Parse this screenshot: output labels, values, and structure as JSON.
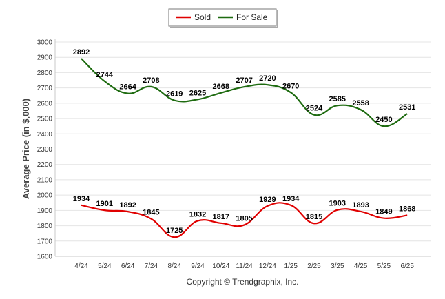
{
  "chart_data": {
    "type": "line",
    "title": "",
    "xlabel": "",
    "ylabel": "Average Price (in $,000)",
    "ylim": [
      1600,
      3000
    ],
    "yticks": [
      "1600",
      "1700",
      "1800",
      "1900",
      "2000",
      "2100",
      "2200",
      "2300",
      "2400",
      "2500",
      "2600",
      "2700",
      "2800",
      "2900",
      "3000"
    ],
    "categories": [
      "4/24",
      "5/24",
      "6/24",
      "7/24",
      "8/24",
      "9/24",
      "10/24",
      "11/24",
      "12/24",
      "1/25",
      "2/25",
      "3/25",
      "4/25",
      "5/25",
      "6/25"
    ],
    "grid": true,
    "legend_position": "top-center",
    "series": [
      {
        "name": "Sold",
        "color": "#e00000",
        "values": [
          1934,
          1901,
          1892,
          1845,
          1725,
          1832,
          1817,
          1805,
          1929,
          1934,
          1815,
          1903,
          1893,
          1849,
          1868
        ]
      },
      {
        "name": "For Sale",
        "color": "#1e6b10",
        "values": [
          2892,
          2744,
          2664,
          2708,
          2619,
          2625,
          2668,
          2707,
          2720,
          2670,
          2524,
          2585,
          2558,
          2450,
          2531
        ]
      }
    ],
    "footer": "Copyright © Trendgraphix, Inc."
  }
}
